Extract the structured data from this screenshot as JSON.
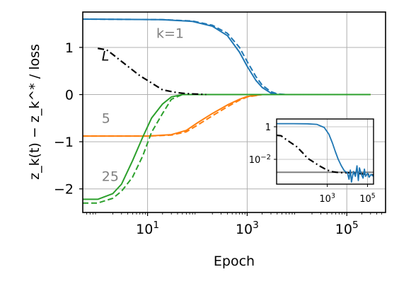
{
  "chart_data": [
    {
      "type": "line",
      "title": "",
      "xlabel": "Epoch",
      "ylabel": "z_k(t) − z_k^* / loss",
      "x_scale": "log",
      "xlim": [
        0.5,
        600000
      ],
      "ylim": [
        -2.5,
        1.75
      ],
      "grid": true,
      "xticks": [
        10,
        1000,
        100000
      ],
      "xtick_labels": [
        [
          "10",
          "1"
        ],
        [
          "10",
          "3"
        ],
        [
          "10",
          "5"
        ]
      ],
      "yticks": [
        1,
        0,
        -1,
        -2
      ],
      "ytick_labels": [
        "1",
        "0",
        "−1",
        "−2"
      ],
      "annotations": [
        {
          "text": "k=1",
          "x": 15,
          "y": 1.2,
          "color": "#808080",
          "italic": false
        },
        {
          "text": "L",
          "x": 1.2,
          "y": 0.72,
          "color": "#000000",
          "italic": true
        },
        {
          "text": "5",
          "x": 1.2,
          "y": -0.6,
          "color": "#808080",
          "italic": false
        },
        {
          "text": "25",
          "x": 1.2,
          "y": -1.83,
          "color": "#808080",
          "italic": false
        }
      ],
      "series": [
        {
          "key": "k1",
          "color": "#1f77b4",
          "style": "solid",
          "x": [
            0.5,
            20,
            80,
            200,
            400,
            700,
            1000,
            1500,
            2000,
            3000,
            4000,
            6000,
            10000,
            300000
          ],
          "y": [
            1.6,
            1.59,
            1.55,
            1.45,
            1.25,
            0.9,
            0.6,
            0.3,
            0.15,
            0.03,
            0.005,
            0,
            0,
            0
          ]
        },
        {
          "key": "k1-target",
          "color": "#1f77b4",
          "style": "dashed",
          "x": [
            0.5,
            20,
            80,
            200,
            400,
            700,
            1000,
            1500,
            2000,
            3000,
            4000,
            6000,
            10000,
            300000
          ],
          "y": [
            1.6,
            1.59,
            1.56,
            1.47,
            1.3,
            1.0,
            0.7,
            0.38,
            0.2,
            0.06,
            0.015,
            0,
            0,
            0
          ]
        },
        {
          "key": "k5",
          "color": "#ff7f0e",
          "style": "solid",
          "x": [
            0.5,
            10,
            30,
            60,
            100,
            200,
            400,
            700,
            1000,
            2000,
            300000
          ],
          "y": [
            -0.88,
            -0.88,
            -0.85,
            -0.76,
            -0.6,
            -0.4,
            -0.22,
            -0.1,
            -0.04,
            0,
            0
          ]
        },
        {
          "key": "k5-target",
          "color": "#ff7f0e",
          "style": "dashed",
          "x": [
            0.5,
            10,
            30,
            60,
            100,
            200,
            400,
            700,
            1000,
            2000,
            300000
          ],
          "y": [
            -0.88,
            -0.88,
            -0.86,
            -0.79,
            -0.65,
            -0.45,
            -0.26,
            -0.12,
            -0.05,
            0,
            0
          ]
        },
        {
          "key": "k25",
          "color": "#2ca02c",
          "style": "solid",
          "x": [
            0.5,
            1,
            2,
            3,
            5,
            8,
            12,
            20,
            30,
            50,
            80,
            150,
            300000
          ],
          "y": [
            -2.22,
            -2.22,
            -2.1,
            -1.9,
            -1.4,
            -0.9,
            -0.5,
            -0.2,
            -0.05,
            0,
            0,
            0,
            0
          ]
        },
        {
          "key": "k25-target",
          "color": "#2ca02c",
          "style": "dashed",
          "x": [
            0.5,
            1,
            2,
            3,
            5,
            8,
            12,
            20,
            30,
            50,
            80,
            150,
            300000
          ],
          "y": [
            -2.3,
            -2.3,
            -2.2,
            -2.05,
            -1.75,
            -1.3,
            -0.8,
            -0.4,
            -0.1,
            0,
            0,
            0,
            0
          ]
        },
        {
          "key": "loss",
          "color": "#000000",
          "style": "dashdot",
          "x": [
            1,
            1.5,
            2,
            4,
            7,
            10,
            20,
            40,
            60,
            100,
            150
          ],
          "y": [
            0.98,
            0.95,
            0.85,
            0.6,
            0.4,
            0.3,
            0.1,
            0.04,
            0.02,
            0.01,
            0
          ]
        }
      ]
    },
    {
      "type": "line",
      "role": "inset",
      "x_scale": "log",
      "y_scale": "log",
      "xlim": [
        3,
        200000
      ],
      "ylim": [
        0.0003,
        3
      ],
      "grid": true,
      "xticks": [
        1000,
        100000
      ],
      "xtick_labels": [
        [
          "10",
          "3"
        ],
        [
          "10",
          "5"
        ]
      ],
      "yticks": [
        1,
        0.01
      ],
      "ytick_labels": [
        [
          "1",
          ""
        ],
        [
          "10",
          "−2"
        ]
      ],
      "reference_lines": [
        {
          "y": 0.0016,
          "color": "#808080"
        }
      ],
      "series": [
        {
          "key": "loss",
          "color": "#000000",
          "style": "dashdot",
          "x": [
            3,
            5,
            10,
            30,
            60,
            100,
            200,
            400,
            800,
            1500,
            3000,
            6000,
            12000,
            25000,
            50000,
            100000,
            200000
          ],
          "y": [
            0.3,
            0.28,
            0.15,
            0.06,
            0.025,
            0.012,
            0.007,
            0.004,
            0.0025,
            0.0018,
            0.0016,
            0.0015,
            0.0015,
            0.0014,
            0.0013,
            0.0012,
            0.0011
          ]
        },
        {
          "key": "k1",
          "color": "#1f77b4",
          "style": "solid",
          "x": [
            3,
            20,
            100,
            300,
            700,
            1200,
            1800,
            2500,
            3500,
            5000,
            7000,
            10000,
            12000,
            14000,
            16000,
            20000,
            25000,
            30000,
            35000,
            40000,
            50000,
            60000,
            70000,
            80000,
            100000,
            120000,
            150000,
            200000
          ],
          "y": [
            1.55,
            1.55,
            1.52,
            1.4,
            0.9,
            0.35,
            0.1,
            0.03,
            0.01,
            0.004,
            0.002,
            0.0015,
            0.0006,
            0.0022,
            0.0004,
            0.0018,
            0.0009,
            0.004,
            0.0005,
            0.003,
            0.0012,
            0.0007,
            0.0025,
            0.0009,
            0.0014,
            0.0008,
            0.0012,
            0.0009
          ]
        }
      ]
    }
  ]
}
